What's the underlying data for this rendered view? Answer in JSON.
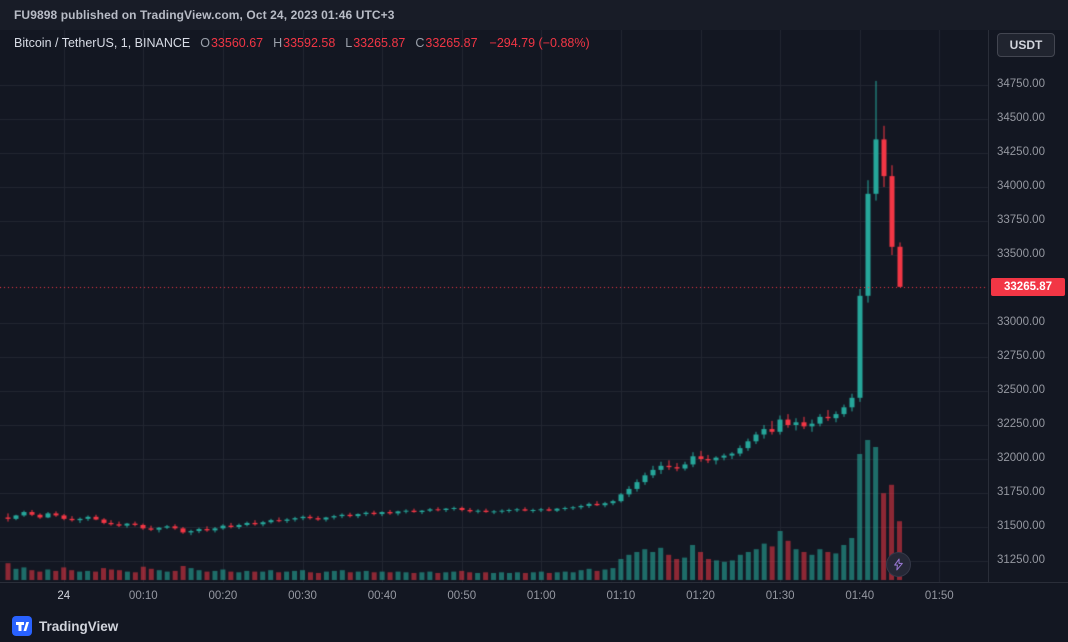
{
  "attribution": {
    "text": "FU9898 published on TradingView.com, Oct 24, 2023 01:46 UTC+3"
  },
  "legend": {
    "symbol_text": "Bitcoin / TetherUS, 1, BINANCE",
    "ohlc": [
      {
        "label": "O",
        "value": "33560.67"
      },
      {
        "label": "H",
        "value": "33592.58"
      },
      {
        "label": "L",
        "value": "33265.87"
      },
      {
        "label": "C",
        "value": "33265.87"
      }
    ],
    "change": "−294.79 (−0.88%)"
  },
  "currency_button": {
    "label": "USDT"
  },
  "footer": {
    "wordmark": "TradingView"
  },
  "last_price_label": "33265.87",
  "colors": {
    "background": "#131722",
    "up": "#26a69a",
    "down": "#f23645",
    "grid": "#222631",
    "last_price_line": "#f23645",
    "reaction_accent": "#9575cd"
  },
  "chart_data": {
    "type": "candlestick",
    "title": "Bitcoin / TetherUS, 1, BINANCE",
    "exchange": "BINANCE",
    "interval": "1",
    "last_price": 33265.87,
    "change": -294.79,
    "change_pct": -0.88,
    "ohlc_last": {
      "open": 33560.67,
      "high": 33592.58,
      "low": 33265.87,
      "close": 33265.87
    },
    "y_axis": {
      "ticks": [
        "34750.00",
        "34500.00",
        "34250.00",
        "34000.00",
        "33750.00",
        "33500.00",
        "33000.00",
        "32750.00",
        "32500.00",
        "32250.00",
        "32000.00",
        "31750.00",
        "31500.00",
        "31250.00"
      ]
    },
    "x_axis": {
      "ticks": [
        {
          "label": "24",
          "index": 7,
          "strong": true
        },
        {
          "label": "00:10",
          "index": 17
        },
        {
          "label": "00:20",
          "index": 27
        },
        {
          "label": "00:30",
          "index": 37
        },
        {
          "label": "00:40",
          "index": 47
        },
        {
          "label": "00:50",
          "index": 57
        },
        {
          "label": "01:00",
          "index": 67
        },
        {
          "label": "01:10",
          "index": 77
        },
        {
          "label": "01:20",
          "index": 87
        },
        {
          "label": "01:30",
          "index": 97
        },
        {
          "label": "01:40",
          "index": 107
        },
        {
          "label": "01:50",
          "index": 117
        }
      ]
    },
    "columns": [
      "time",
      "open",
      "high",
      "low",
      "close",
      "volume"
    ],
    "candles": [
      [
        "23:53",
        31570,
        31600,
        31540,
        31560,
        120
      ],
      [
        "23:54",
        31560,
        31590,
        31550,
        31585,
        80
      ],
      [
        "23:55",
        31585,
        31620,
        31575,
        31610,
        90
      ],
      [
        "23:56",
        31610,
        31625,
        31580,
        31590,
        70
      ],
      [
        "23:57",
        31590,
        31600,
        31560,
        31570,
        60
      ],
      [
        "23:58",
        31570,
        31610,
        31565,
        31600,
        75
      ],
      [
        "23:59",
        31600,
        31615,
        31575,
        31585,
        65
      ],
      [
        "00:00",
        31585,
        31595,
        31550,
        31560,
        90
      ],
      [
        "00:01",
        31560,
        31580,
        31540,
        31550,
        70
      ],
      [
        "00:02",
        31550,
        31570,
        31530,
        31560,
        60
      ],
      [
        "00:03",
        31560,
        31585,
        31545,
        31575,
        65
      ],
      [
        "00:04",
        31575,
        31590,
        31550,
        31555,
        60
      ],
      [
        "00:05",
        31555,
        31565,
        31520,
        31530,
        85
      ],
      [
        "00:06",
        31530,
        31550,
        31510,
        31520,
        75
      ],
      [
        "00:07",
        31520,
        31540,
        31500,
        31510,
        70
      ],
      [
        "00:08",
        31510,
        31530,
        31495,
        31525,
        60
      ],
      [
        "00:09",
        31525,
        31540,
        31505,
        31515,
        55
      ],
      [
        "00:10",
        31515,
        31525,
        31480,
        31490,
        95
      ],
      [
        "00:11",
        31490,
        31510,
        31470,
        31480,
        80
      ],
      [
        "00:12",
        31480,
        31500,
        31460,
        31495,
        70
      ],
      [
        "00:13",
        31495,
        31515,
        31485,
        31505,
        60
      ],
      [
        "00:14",
        31505,
        31520,
        31480,
        31490,
        65
      ],
      [
        "00:15",
        31490,
        31500,
        31450,
        31460,
        100
      ],
      [
        "00:16",
        31460,
        31480,
        31440,
        31470,
        85
      ],
      [
        "00:17",
        31470,
        31495,
        31455,
        31485,
        70
      ],
      [
        "00:18",
        31485,
        31505,
        31465,
        31475,
        60
      ],
      [
        "00:19",
        31475,
        31500,
        31460,
        31490,
        65
      ],
      [
        "00:20",
        31490,
        31520,
        31480,
        31510,
        75
      ],
      [
        "00:21",
        31510,
        31530,
        31490,
        31500,
        60
      ],
      [
        "00:22",
        31500,
        31525,
        31485,
        31515,
        55
      ],
      [
        "00:23",
        31515,
        31540,
        31505,
        31530,
        65
      ],
      [
        "00:24",
        31530,
        31550,
        31510,
        31520,
        60
      ],
      [
        "00:25",
        31520,
        31545,
        31505,
        31535,
        60
      ],
      [
        "00:26",
        31535,
        31560,
        31525,
        31550,
        70
      ],
      [
        "00:27",
        31550,
        31570,
        31535,
        31545,
        55
      ],
      [
        "00:28",
        31545,
        31565,
        31530,
        31555,
        60
      ],
      [
        "00:29",
        31555,
        31575,
        31540,
        31565,
        65
      ],
      [
        "00:30",
        31565,
        31585,
        31550,
        31575,
        70
      ],
      [
        "00:31",
        31575,
        31590,
        31555,
        31565,
        55
      ],
      [
        "00:32",
        31565,
        31580,
        31545,
        31555,
        50
      ],
      [
        "00:33",
        31555,
        31575,
        31540,
        31570,
        60
      ],
      [
        "00:34",
        31570,
        31590,
        31555,
        31580,
        65
      ],
      [
        "00:35",
        31580,
        31600,
        31565,
        31590,
        70
      ],
      [
        "00:36",
        31590,
        31605,
        31570,
        31580,
        55
      ],
      [
        "00:37",
        31580,
        31600,
        31565,
        31595,
        60
      ],
      [
        "00:38",
        31595,
        31615,
        31580,
        31605,
        65
      ],
      [
        "00:39",
        31605,
        31620,
        31585,
        31595,
        55
      ],
      [
        "00:40",
        31595,
        31615,
        31580,
        31610,
        60
      ],
      [
        "00:41",
        31610,
        31625,
        31590,
        31600,
        55
      ],
      [
        "00:42",
        31600,
        31620,
        31585,
        31615,
        60
      ],
      [
        "00:43",
        31615,
        31630,
        31600,
        31620,
        55
      ],
      [
        "00:44",
        31620,
        31635,
        31605,
        31610,
        50
      ],
      [
        "00:45",
        31610,
        31625,
        31595,
        31620,
        55
      ],
      [
        "00:46",
        31620,
        31640,
        31610,
        31630,
        60
      ],
      [
        "00:47",
        31630,
        31645,
        31615,
        31625,
        50
      ],
      [
        "00:48",
        31625,
        31640,
        31610,
        31635,
        55
      ],
      [
        "00:49",
        31635,
        31650,
        31620,
        31640,
        60
      ],
      [
        "00:50",
        31640,
        31650,
        31615,
        31625,
        65
      ],
      [
        "00:51",
        31625,
        31640,
        31605,
        31615,
        55
      ],
      [
        "00:52",
        31615,
        31630,
        31600,
        31620,
        50
      ],
      [
        "00:53",
        31620,
        31635,
        31605,
        31610,
        55
      ],
      [
        "00:54",
        31610,
        31625,
        31595,
        31615,
        50
      ],
      [
        "00:55",
        31615,
        31630,
        31600,
        31620,
        55
      ],
      [
        "00:56",
        31620,
        31635,
        31605,
        31625,
        50
      ],
      [
        "00:57",
        31625,
        31640,
        31610,
        31630,
        55
      ],
      [
        "00:58",
        31630,
        31645,
        31615,
        31620,
        50
      ],
      [
        "00:59",
        31620,
        31635,
        31605,
        31625,
        55
      ],
      [
        "01:00",
        31625,
        31640,
        31610,
        31630,
        60
      ],
      [
        "01:01",
        31630,
        31645,
        31615,
        31620,
        50
      ],
      [
        "01:02",
        31620,
        31640,
        31610,
        31635,
        55
      ],
      [
        "01:03",
        31635,
        31650,
        31620,
        31640,
        60
      ],
      [
        "01:04",
        31640,
        31655,
        31625,
        31645,
        55
      ],
      [
        "01:05",
        31645,
        31665,
        31630,
        31655,
        70
      ],
      [
        "01:06",
        31655,
        31680,
        31640,
        31670,
        80
      ],
      [
        "01:07",
        31670,
        31690,
        31655,
        31660,
        65
      ],
      [
        "01:08",
        31660,
        31685,
        31645,
        31675,
        75
      ],
      [
        "01:09",
        31675,
        31700,
        31660,
        31690,
        85
      ],
      [
        "01:10",
        31690,
        31750,
        31680,
        31740,
        150
      ],
      [
        "01:11",
        31740,
        31800,
        31720,
        31780,
        180
      ],
      [
        "01:12",
        31780,
        31850,
        31760,
        31830,
        200
      ],
      [
        "01:13",
        31830,
        31900,
        31810,
        31880,
        220
      ],
      [
        "01:14",
        31880,
        31950,
        31860,
        31920,
        200
      ],
      [
        "01:15",
        31920,
        31980,
        31890,
        31950,
        230
      ],
      [
        "01:16",
        31950,
        31990,
        31920,
        31940,
        180
      ],
      [
        "01:17",
        31940,
        31970,
        31910,
        31930,
        150
      ],
      [
        "01:18",
        31930,
        31980,
        31915,
        31960,
        160
      ],
      [
        "01:19",
        31960,
        32050,
        31940,
        32020,
        250
      ],
      [
        "01:20",
        32020,
        32060,
        31980,
        32000,
        200
      ],
      [
        "01:21",
        32000,
        32030,
        31970,
        31990,
        150
      ],
      [
        "01:22",
        31990,
        32020,
        31960,
        32010,
        140
      ],
      [
        "01:23",
        32010,
        32040,
        31990,
        32025,
        130
      ],
      [
        "01:24",
        32025,
        32050,
        32000,
        32040,
        140
      ],
      [
        "01:25",
        32040,
        32100,
        32020,
        32080,
        180
      ],
      [
        "01:26",
        32080,
        32150,
        32060,
        32130,
        200
      ],
      [
        "01:27",
        32130,
        32200,
        32110,
        32180,
        220
      ],
      [
        "01:28",
        32180,
        32250,
        32150,
        32220,
        260
      ],
      [
        "01:29",
        32220,
        32280,
        32180,
        32200,
        240
      ],
      [
        "01:30",
        32200,
        32320,
        32180,
        32290,
        350
      ],
      [
        "01:31",
        32290,
        32330,
        32230,
        32250,
        280
      ],
      [
        "01:32",
        32250,
        32300,
        32210,
        32270,
        220
      ],
      [
        "01:33",
        32270,
        32310,
        32220,
        32240,
        200
      ],
      [
        "01:34",
        32240,
        32290,
        32200,
        32260,
        180
      ],
      [
        "01:35",
        32260,
        32330,
        32240,
        32310,
        220
      ],
      [
        "01:36",
        32310,
        32360,
        32280,
        32300,
        200
      ],
      [
        "01:37",
        32300,
        32350,
        32270,
        32330,
        190
      ],
      [
        "01:38",
        32330,
        32400,
        32310,
        32380,
        250
      ],
      [
        "01:39",
        32380,
        32480,
        32350,
        32450,
        300
      ],
      [
        "01:40",
        32450,
        33250,
        32420,
        33200,
        900
      ],
      [
        "01:41",
        33200,
        34050,
        33150,
        33950,
        1000
      ],
      [
        "01:42",
        33950,
        34780,
        33900,
        34350,
        950
      ],
      [
        "01:43",
        34350,
        34450,
        34000,
        34080,
        620
      ],
      [
        "01:44",
        34080,
        34160,
        33500,
        33560,
        680
      ],
      [
        "01:45",
        33560.67,
        33592.58,
        33265.87,
        33265.87,
        420
      ]
    ]
  }
}
